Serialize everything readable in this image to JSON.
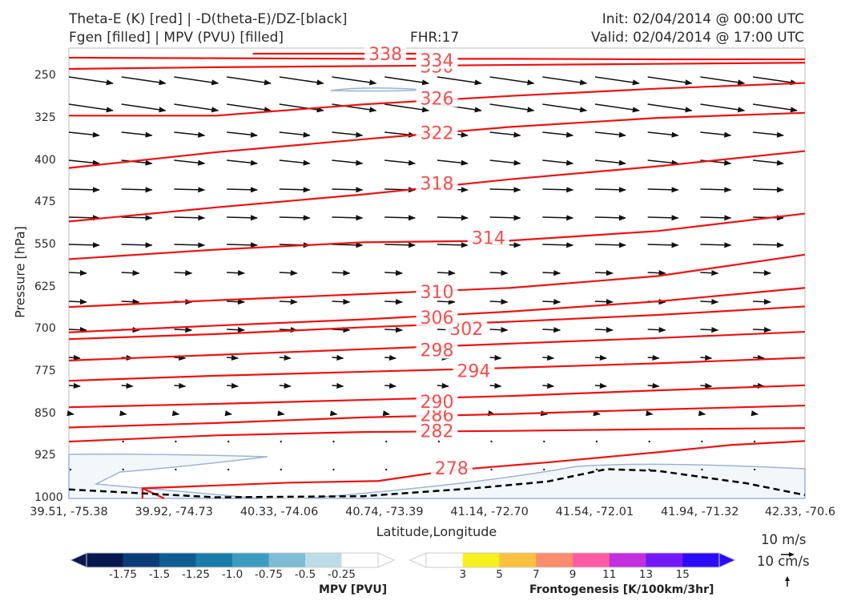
{
  "header": {
    "line1_left": "Theta-E (K) [red] | -D(theta-E)/DZ-[black]",
    "line2_left": "Fgen [filled] | MPV (PVU) [filled]",
    "fhr": "FHR:17",
    "init": "Init: 02/04/2014 @ 00:00 UTC",
    "valid": "Valid: 02/04/2014 @ 17:00 UTC"
  },
  "axes": {
    "ylabel": "Pressure [hPa]",
    "xlabel": "Latitude,Longitude",
    "yticks": [
      "250",
      "325",
      "400",
      "475",
      "550",
      "625",
      "700",
      "775",
      "850",
      "925",
      "1000"
    ],
    "xticks": [
      "39.51, -75.38",
      "39.92, -74.73",
      "40.33, -74.06",
      "40.74, -73.39",
      "41.14, -72.70",
      "41.54, -72.01",
      "41.94, -71.32",
      "42.33, -70.6"
    ]
  },
  "wind_key": {
    "label1": "10 m/s",
    "label2": "10 cm/s"
  },
  "colorbars": {
    "mpv": {
      "title": "MPV [PVU]",
      "ticks": [
        "-1.75",
        "-1.5",
        "-1.25",
        "-1.0",
        "-0.75",
        "-0.5",
        "-0.25"
      ],
      "colors": [
        "#08184e",
        "#0c3c78",
        "#0d5c92",
        "#1a7ca8",
        "#3c9cc0",
        "#7cbcd4",
        "#bcdce6",
        "#ffffff"
      ]
    },
    "fgen": {
      "title": "Frontogenesis [K/100km/3hr]",
      "ticks": [
        "3",
        "5",
        "7",
        "9",
        "11",
        "13",
        "15"
      ],
      "colors": [
        "#ffffff",
        "#f8f01c",
        "#fcc040",
        "#fc8c6c",
        "#fc5ca4",
        "#c030dc",
        "#7418f8",
        "#2c0cf8"
      ]
    }
  },
  "chart_data": {
    "type": "cross-section contour",
    "title": "Theta-E (K) [red] | -D(theta-E)/DZ-[black] | Fgen [filled] | MPV (PVU) [filled]",
    "xlabel": "Latitude,Longitude",
    "ylabel": "Pressure [hPa]",
    "yaxis_range": [
      1000,
      200
    ],
    "x_categories": [
      "39.51, -75.38",
      "39.92, -74.73",
      "40.33, -74.06",
      "40.74, -73.39",
      "41.14, -72.70",
      "41.54, -72.01",
      "41.94, -71.32",
      "42.33, -70.6"
    ],
    "theta_e_contours": [
      {
        "value": 278,
        "label": "278",
        "label_at": {
          "x_frac": 0.52,
          "p": 946
        },
        "points": [
          [
            0.1,
            1000
          ],
          [
            0.1,
            982
          ],
          [
            0.3,
            972
          ],
          [
            0.42,
            969
          ],
          [
            0.52,
            950
          ],
          [
            0.65,
            936
          ],
          [
            0.8,
            918
          ],
          [
            0.9,
            905
          ],
          [
            1.0,
            898
          ]
        ]
      },
      {
        "value": 282,
        "label": "282",
        "label_at": {
          "x_frac": 0.5,
          "p": 880
        },
        "points": [
          [
            0,
            899
          ],
          [
            0.2,
            888
          ],
          [
            0.4,
            882
          ],
          [
            0.6,
            880
          ],
          [
            0.8,
            877
          ],
          [
            1.0,
            875
          ]
        ]
      },
      {
        "value": 286,
        "label": "286",
        "label_at": {
          "x_frac": 0.5,
          "p": 851
        },
        "points": [
          [
            0,
            874
          ],
          [
            0.2,
            866
          ],
          [
            0.4,
            856
          ],
          [
            0.6,
            850
          ],
          [
            0.8,
            842
          ],
          [
            1.0,
            835
          ]
        ]
      },
      {
        "value": 290,
        "label": "290",
        "label_at": {
          "x_frac": 0.5,
          "p": 828
        },
        "points": [
          [
            0,
            838
          ],
          [
            0.2,
            832
          ],
          [
            0.4,
            825
          ],
          [
            0.6,
            818
          ],
          [
            0.8,
            808
          ],
          [
            1.0,
            799
          ]
        ]
      },
      {
        "value": 294,
        "label": "294",
        "label_at": {
          "x_frac": 0.55,
          "p": 773
        },
        "points": [
          [
            0,
            791
          ],
          [
            0.2,
            782
          ],
          [
            0.4,
            775
          ],
          [
            0.6,
            768
          ],
          [
            0.8,
            760
          ],
          [
            1.0,
            750
          ]
        ]
      },
      {
        "value": 298,
        "label": "298",
        "label_at": {
          "x_frac": 0.5,
          "p": 736
        },
        "points": [
          [
            0,
            755
          ],
          [
            0.2,
            745
          ],
          [
            0.4,
            735
          ],
          [
            0.6,
            725
          ],
          [
            0.8,
            715
          ],
          [
            1.0,
            704
          ]
        ]
      },
      {
        "value": 302,
        "label": "302",
        "label_at": {
          "x_frac": 0.54,
          "p": 698
        },
        "points": [
          [
            0,
            717
          ],
          [
            0.2,
            708
          ],
          [
            0.4,
            696
          ],
          [
            0.6,
            686
          ],
          [
            0.8,
            674
          ],
          [
            1.0,
            659
          ]
        ]
      },
      {
        "value": 306,
        "label": "306",
        "label_at": {
          "x_frac": 0.5,
          "p": 678
        },
        "points": [
          [
            0,
            705
          ],
          [
            0.2,
            693
          ],
          [
            0.4,
            682
          ],
          [
            0.6,
            668
          ],
          [
            0.8,
            650
          ],
          [
            1.0,
            626
          ]
        ]
      },
      {
        "value": 310,
        "label": "310",
        "label_at": {
          "x_frac": 0.5,
          "p": 633
        },
        "points": [
          [
            0,
            660
          ],
          [
            0.2,
            648
          ],
          [
            0.4,
            637
          ],
          [
            0.6,
            626
          ],
          [
            0.8,
            605
          ],
          [
            1.0,
            567
          ]
        ]
      },
      {
        "value": 314,
        "label": "314",
        "label_at": {
          "x_frac": 0.57,
          "p": 537
        },
        "points": [
          [
            0,
            575
          ],
          [
            0.2,
            558
          ],
          [
            0.4,
            545
          ],
          [
            0.6,
            542
          ],
          [
            0.8,
            525
          ],
          [
            1.0,
            494
          ]
        ]
      },
      {
        "value": 318,
        "label": "318",
        "label_at": {
          "x_frac": 0.5,
          "p": 440
        },
        "points": [
          [
            0,
            508
          ],
          [
            0.2,
            483
          ],
          [
            0.4,
            460
          ],
          [
            0.6,
            433
          ],
          [
            0.8,
            410
          ],
          [
            1.0,
            383
          ]
        ]
      },
      {
        "value": 322,
        "label": "322",
        "label_at": {
          "x_frac": 0.5,
          "p": 350
        },
        "points": [
          [
            0,
            413
          ],
          [
            0.2,
            385
          ],
          [
            0.4,
            362
          ],
          [
            0.6,
            340
          ],
          [
            0.8,
            324
          ],
          [
            1.0,
            315
          ]
        ]
      },
      {
        "value": 326,
        "label": "326",
        "label_at": {
          "x_frac": 0.5,
          "p": 289
        },
        "points": [
          [
            0,
            320
          ],
          [
            0.2,
            320
          ],
          [
            0.4,
            300
          ],
          [
            0.6,
            285
          ],
          [
            0.8,
            272
          ],
          [
            1.0,
            262
          ]
        ]
      },
      {
        "value": 330,
        "label": "330",
        "label_at": {
          "x_frac": 0.5,
          "p": 232
        },
        "points": [
          [
            0,
            237
          ],
          [
            0.2,
            234
          ],
          [
            0.4,
            232
          ],
          [
            0.6,
            230
          ],
          [
            0.8,
            228
          ],
          [
            1.0,
            226
          ]
        ]
      },
      {
        "value": 334,
        "label": "334",
        "label_at": {
          "x_frac": 0.5,
          "p": 221
        },
        "points": [
          [
            0,
            217
          ],
          [
            0.2,
            218
          ],
          [
            0.4,
            219
          ],
          [
            0.6,
            219
          ],
          [
            0.8,
            220
          ],
          [
            1.0,
            220
          ]
        ]
      },
      {
        "value": 338,
        "label": "338",
        "label_at": {
          "x_frac": 0.43,
          "p": 210
        },
        "points": [
          [
            0.25,
            210
          ],
          [
            0.5,
            210
          ]
        ]
      }
    ],
    "mpv_region_value": -0.25,
    "zero_dashed_contour_points": [
      [
        0,
        984
      ],
      [
        0.2,
        998
      ],
      [
        0.4,
        996
      ],
      [
        0.55,
        982
      ],
      [
        0.65,
        970
      ],
      [
        0.73,
        948
      ],
      [
        0.8,
        951
      ],
      [
        0.92,
        973
      ],
      [
        1.0,
        994
      ]
    ]
  }
}
